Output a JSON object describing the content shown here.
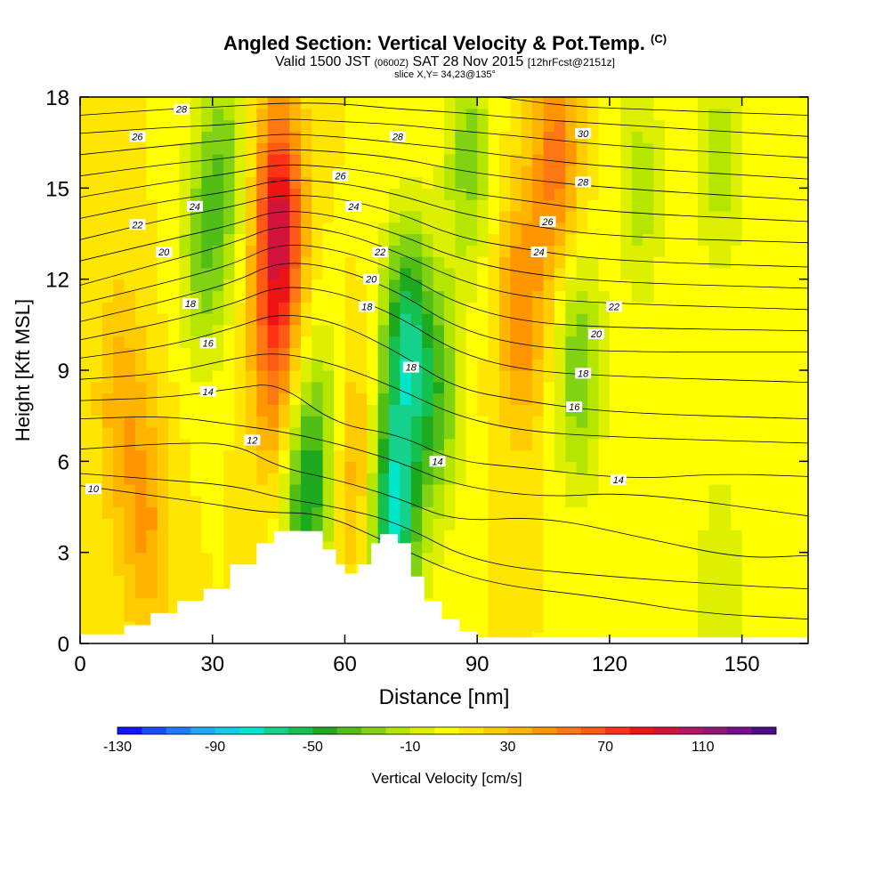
{
  "header": {
    "title": "Angled Section: Vertical Velocity & Pot.Temp.",
    "copyright": "(C)",
    "valid_prefix": "Valid 1500 JST",
    "utc": "(0600Z)",
    "valid_date": "SAT 28 Nov 2015",
    "forecast": "[12hrFcst@2151z]",
    "slice": "slice X,Y= 34,23@135°"
  },
  "chart_data": {
    "type": "heatmap",
    "xlabel": "Distance [nm]",
    "ylabel": "Height [Kft MSL]",
    "xlim": [
      0,
      165
    ],
    "ylim": [
      0,
      18
    ],
    "x_ticks": [
      0,
      30,
      60,
      90,
      120,
      150
    ],
    "y_ticks": [
      0,
      3,
      6,
      9,
      12,
      15,
      18
    ],
    "colorbar": {
      "label": "Vertical Velocity [cm/s]",
      "min": -130,
      "max": 150,
      "step": 10,
      "tick_labels": [
        -130,
        -90,
        -50,
        -10,
        30,
        70,
        110
      ],
      "colors": [
        "#1414ff",
        "#1a4cff",
        "#1e7dff",
        "#1ea8ff",
        "#12ccf0",
        "#00e6cc",
        "#14d28c",
        "#14c050",
        "#1eaa1e",
        "#50be14",
        "#82d214",
        "#b4e600",
        "#dcf000",
        "#ffff00",
        "#ffe600",
        "#ffcc00",
        "#ffb400",
        "#ff9600",
        "#ff7814",
        "#ff5a14",
        "#ff3214",
        "#ec1414",
        "#d2143c",
        "#b41464",
        "#961478",
        "#780a96",
        "#500a8c"
      ]
    },
    "velocity_features": [
      {
        "x": 28,
        "z": 13,
        "w": -35
      },
      {
        "x": 33,
        "z": 16,
        "w": -30
      },
      {
        "x": 45,
        "z": 14,
        "w": 80
      },
      {
        "x": 44,
        "z": 9,
        "w": 40
      },
      {
        "x": 51,
        "z": 5,
        "w": -55
      },
      {
        "x": 57,
        "z": 7,
        "w": -30
      },
      {
        "x": 61,
        "z": 6,
        "w": 40
      },
      {
        "x": 71,
        "z": 4,
        "w": -80
      },
      {
        "x": 74,
        "z": 10,
        "w": -65
      },
      {
        "x": 81,
        "z": 8,
        "w": -40
      },
      {
        "x": 88,
        "z": 16,
        "w": -35
      },
      {
        "x": 100,
        "z": 11,
        "w": 40
      },
      {
        "x": 108,
        "z": 16,
        "w": 45
      },
      {
        "x": 113,
        "z": 9,
        "w": -40
      },
      {
        "x": 9,
        "z": 8,
        "w": 25
      },
      {
        "x": 15,
        "z": 4,
        "w": 30
      },
      {
        "x": 127,
        "z": 15,
        "w": -25
      },
      {
        "x": 145,
        "z": 16,
        "w": -25
      },
      {
        "x": 145,
        "z": 2,
        "w": -20
      }
    ],
    "terrain": [
      {
        "x": 0,
        "h": 0.3
      },
      {
        "x": 10,
        "h": 0.6
      },
      {
        "x": 16,
        "h": 1.0
      },
      {
        "x": 22,
        "h": 1.4
      },
      {
        "x": 28,
        "h": 1.8
      },
      {
        "x": 34,
        "h": 2.6
      },
      {
        "x": 40,
        "h": 3.3
      },
      {
        "x": 44,
        "h": 3.7
      },
      {
        "x": 51,
        "h": 3.7
      },
      {
        "x": 55,
        "h": 3.1
      },
      {
        "x": 58,
        "h": 2.6
      },
      {
        "x": 60,
        "h": 2.3
      },
      {
        "x": 63,
        "h": 2.6
      },
      {
        "x": 66,
        "h": 3.3
      },
      {
        "x": 68,
        "h": 3.6
      },
      {
        "x": 72,
        "h": 3.3
      },
      {
        "x": 75,
        "h": 2.2
      },
      {
        "x": 78,
        "h": 1.4
      },
      {
        "x": 82,
        "h": 0.8
      },
      {
        "x": 86,
        "h": 0.4
      },
      {
        "x": 90,
        "h": 0.2
      },
      {
        "x": 165,
        "h": 0.2
      }
    ],
    "isentropes": [
      {
        "label": "10",
        "pts": [
          [
            0,
            5.2
          ],
          [
            15,
            4.9
          ],
          [
            30,
            4.6
          ],
          [
            42,
            4.3
          ],
          [
            55,
            4.3
          ],
          [
            70,
            3.3
          ],
          [
            90,
            2.0
          ],
          [
            120,
            1.5
          ],
          [
            140,
            1.0
          ],
          [
            165,
            0.8
          ]
        ]
      },
      {
        "label": "",
        "pts": [
          [
            0,
            5.6
          ],
          [
            18,
            5.4
          ],
          [
            35,
            5.2
          ],
          [
            45,
            4.8
          ],
          [
            58,
            4.5
          ],
          [
            72,
            4.0
          ],
          [
            90,
            2.6
          ],
          [
            120,
            2.2
          ],
          [
            150,
            1.9
          ],
          [
            165,
            1.8
          ]
        ]
      },
      {
        "label": "12",
        "pts": [
          [
            0,
            6.4
          ],
          [
            20,
            6.6
          ],
          [
            35,
            6.6
          ],
          [
            45,
            5.8
          ],
          [
            58,
            5.4
          ],
          [
            72,
            4.8
          ],
          [
            85,
            4.0
          ],
          [
            105,
            4.2
          ],
          [
            130,
            3.4
          ],
          [
            150,
            2.8
          ],
          [
            165,
            2.9
          ]
        ]
      },
      {
        "label": "",
        "pts": [
          [
            0,
            7.4
          ],
          [
            20,
            7.5
          ],
          [
            35,
            7.2
          ],
          [
            45,
            7.0
          ],
          [
            58,
            6.6
          ],
          [
            72,
            6.0
          ],
          [
            85,
            5.2
          ],
          [
            105,
            4.8
          ],
          [
            125,
            5.0
          ],
          [
            165,
            4.2
          ]
        ]
      },
      {
        "label": "14",
        "pts": [
          [
            0,
            8.0
          ],
          [
            20,
            8.1
          ],
          [
            35,
            8.4
          ],
          [
            45,
            8.6
          ],
          [
            58,
            7.2
          ],
          [
            72,
            6.9
          ],
          [
            85,
            6.0
          ],
          [
            100,
            5.8
          ],
          [
            125,
            5.4
          ],
          [
            145,
            5.6
          ],
          [
            165,
            5.5
          ]
        ]
      },
      {
        "label": "",
        "pts": [
          [
            0,
            8.7
          ],
          [
            20,
            8.9
          ],
          [
            35,
            9.4
          ],
          [
            45,
            9.6
          ],
          [
            58,
            9.2
          ],
          [
            72,
            8.4
          ],
          [
            85,
            7.5
          ],
          [
            100,
            7.0
          ],
          [
            120,
            6.8
          ],
          [
            165,
            6.6
          ]
        ]
      },
      {
        "label": "16",
        "pts": [
          [
            0,
            9.4
          ],
          [
            20,
            9.8
          ],
          [
            35,
            10.4
          ],
          [
            45,
            10.9
          ],
          [
            58,
            10.6
          ],
          [
            72,
            9.6
          ],
          [
            85,
            8.4
          ],
          [
            100,
            8.0
          ],
          [
            120,
            7.6
          ],
          [
            165,
            7.4
          ]
        ]
      },
      {
        "label": "",
        "pts": [
          [
            0,
            10.0
          ],
          [
            20,
            10.6
          ],
          [
            35,
            11.2
          ],
          [
            45,
            11.8
          ],
          [
            58,
            11.6
          ],
          [
            72,
            10.8
          ],
          [
            85,
            9.6
          ],
          [
            100,
            9.0
          ],
          [
            120,
            8.8
          ],
          [
            165,
            8.6
          ]
        ]
      },
      {
        "label": "18",
        "pts": [
          [
            0,
            10.6
          ],
          [
            20,
            11.3
          ],
          [
            35,
            11.9
          ],
          [
            45,
            12.6
          ],
          [
            58,
            12.4
          ],
          [
            72,
            11.6
          ],
          [
            85,
            10.4
          ],
          [
            100,
            9.8
          ],
          [
            120,
            9.6
          ],
          [
            165,
            9.6
          ]
        ]
      },
      {
        "label": "",
        "pts": [
          [
            0,
            11.2
          ],
          [
            20,
            11.9
          ],
          [
            35,
            12.5
          ],
          [
            45,
            13.2
          ],
          [
            58,
            13.0
          ],
          [
            72,
            12.3
          ],
          [
            85,
            11.2
          ],
          [
            100,
            10.6
          ],
          [
            120,
            10.4
          ],
          [
            165,
            10.3
          ]
        ]
      },
      {
        "label": "20",
        "pts": [
          [
            0,
            11.8
          ],
          [
            20,
            12.6
          ],
          [
            35,
            13.2
          ],
          [
            45,
            13.8
          ],
          [
            58,
            13.6
          ],
          [
            72,
            12.9
          ],
          [
            85,
            12.0
          ],
          [
            100,
            11.4
          ],
          [
            120,
            11.2
          ],
          [
            165,
            11.0
          ]
        ]
      },
      {
        "label": "",
        "pts": [
          [
            0,
            12.6
          ],
          [
            20,
            13.3
          ],
          [
            35,
            13.8
          ],
          [
            45,
            14.3
          ],
          [
            58,
            14.1
          ],
          [
            72,
            13.5
          ],
          [
            85,
            12.7
          ],
          [
            100,
            12.2
          ],
          [
            120,
            11.9
          ],
          [
            165,
            11.7
          ]
        ]
      },
      {
        "label": "22",
        "pts": [
          [
            0,
            13.3
          ],
          [
            20,
            14.0
          ],
          [
            35,
            14.4
          ],
          [
            45,
            14.8
          ],
          [
            58,
            14.7
          ],
          [
            72,
            14.2
          ],
          [
            85,
            13.4
          ],
          [
            100,
            13.0
          ],
          [
            120,
            12.6
          ],
          [
            165,
            12.4
          ]
        ]
      },
      {
        "label": "",
        "pts": [
          [
            0,
            14.0
          ],
          [
            20,
            14.6
          ],
          [
            35,
            14.9
          ],
          [
            45,
            15.3
          ],
          [
            58,
            15.2
          ],
          [
            72,
            14.8
          ],
          [
            85,
            14.2
          ],
          [
            100,
            13.8
          ],
          [
            120,
            13.4
          ],
          [
            165,
            13.2
          ]
        ]
      },
      {
        "label": "24",
        "pts": [
          [
            0,
            14.7
          ],
          [
            20,
            15.2
          ],
          [
            35,
            15.5
          ],
          [
            45,
            15.8
          ],
          [
            58,
            15.7
          ],
          [
            72,
            15.4
          ],
          [
            85,
            14.9
          ],
          [
            100,
            14.6
          ],
          [
            120,
            14.2
          ],
          [
            165,
            13.9
          ]
        ]
      },
      {
        "label": "",
        "pts": [
          [
            0,
            15.4
          ],
          [
            20,
            15.8
          ],
          [
            35,
            16.0
          ],
          [
            45,
            16.3
          ],
          [
            58,
            16.2
          ],
          [
            72,
            16.0
          ],
          [
            85,
            15.6
          ],
          [
            100,
            15.3
          ],
          [
            120,
            15.0
          ],
          [
            165,
            14.6
          ]
        ]
      },
      {
        "label": "26",
        "pts": [
          [
            0,
            16.1
          ],
          [
            20,
            16.4
          ],
          [
            35,
            16.6
          ],
          [
            45,
            16.8
          ],
          [
            58,
            16.7
          ],
          [
            72,
            16.5
          ],
          [
            85,
            16.3
          ],
          [
            100,
            16.0
          ],
          [
            120,
            15.7
          ],
          [
            165,
            15.3
          ]
        ]
      },
      {
        "label": "",
        "pts": [
          [
            0,
            16.8
          ],
          [
            20,
            17.0
          ],
          [
            35,
            17.1
          ],
          [
            45,
            17.3
          ],
          [
            58,
            17.2
          ],
          [
            72,
            17.1
          ],
          [
            85,
            16.9
          ],
          [
            100,
            16.7
          ],
          [
            120,
            16.4
          ],
          [
            165,
            16.0
          ]
        ]
      },
      {
        "label": "28",
        "pts": [
          [
            0,
            17.4
          ],
          [
            20,
            17.6
          ],
          [
            35,
            17.7
          ],
          [
            45,
            17.8
          ],
          [
            58,
            17.8
          ],
          [
            72,
            17.6
          ],
          [
            85,
            17.5
          ],
          [
            100,
            17.3
          ],
          [
            120,
            17.1
          ],
          [
            165,
            16.7
          ]
        ]
      },
      {
        "label": "30",
        "pts": [
          [
            95,
            18.0
          ],
          [
            110,
            17.7
          ],
          [
            125,
            17.6
          ],
          [
            165,
            17.4
          ]
        ]
      }
    ],
    "isentrope_labels": [
      {
        "text": "10",
        "x": 3,
        "z": 5.1
      },
      {
        "text": "12",
        "x": 39,
        "z": 6.7
      },
      {
        "text": "14",
        "x": 29,
        "z": 8.3
      },
      {
        "text": "16",
        "x": 29,
        "z": 9.9
      },
      {
        "text": "18",
        "x": 25,
        "z": 11.2
      },
      {
        "text": "20",
        "x": 19,
        "z": 12.9
      },
      {
        "text": "22",
        "x": 13,
        "z": 13.8
      },
      {
        "text": "24",
        "x": 26,
        "z": 14.4
      },
      {
        "text": "26",
        "x": 13,
        "z": 16.7
      },
      {
        "text": "28",
        "x": 23,
        "z": 17.6
      },
      {
        "text": "26",
        "x": 59,
        "z": 15.4
      },
      {
        "text": "24",
        "x": 62,
        "z": 14.4
      },
      {
        "text": "22",
        "x": 68,
        "z": 12.9
      },
      {
        "text": "20",
        "x": 66,
        "z": 12.0
      },
      {
        "text": "18",
        "x": 65,
        "z": 11.1
      },
      {
        "text": "18",
        "x": 75,
        "z": 9.1
      },
      {
        "text": "28",
        "x": 72,
        "z": 16.7
      },
      {
        "text": "14",
        "x": 81,
        "z": 6.0
      },
      {
        "text": "14",
        "x": 122,
        "z": 5.4
      },
      {
        "text": "16",
        "x": 112,
        "z": 7.8
      },
      {
        "text": "18",
        "x": 114,
        "z": 8.9
      },
      {
        "text": "20",
        "x": 117,
        "z": 10.2
      },
      {
        "text": "22",
        "x": 121,
        "z": 11.1
      },
      {
        "text": "24",
        "x": 104,
        "z": 12.9
      },
      {
        "text": "26",
        "x": 106,
        "z": 13.9
      },
      {
        "text": "28",
        "x": 114,
        "z": 15.2
      },
      {
        "text": "30",
        "x": 114,
        "z": 16.8
      }
    ]
  }
}
